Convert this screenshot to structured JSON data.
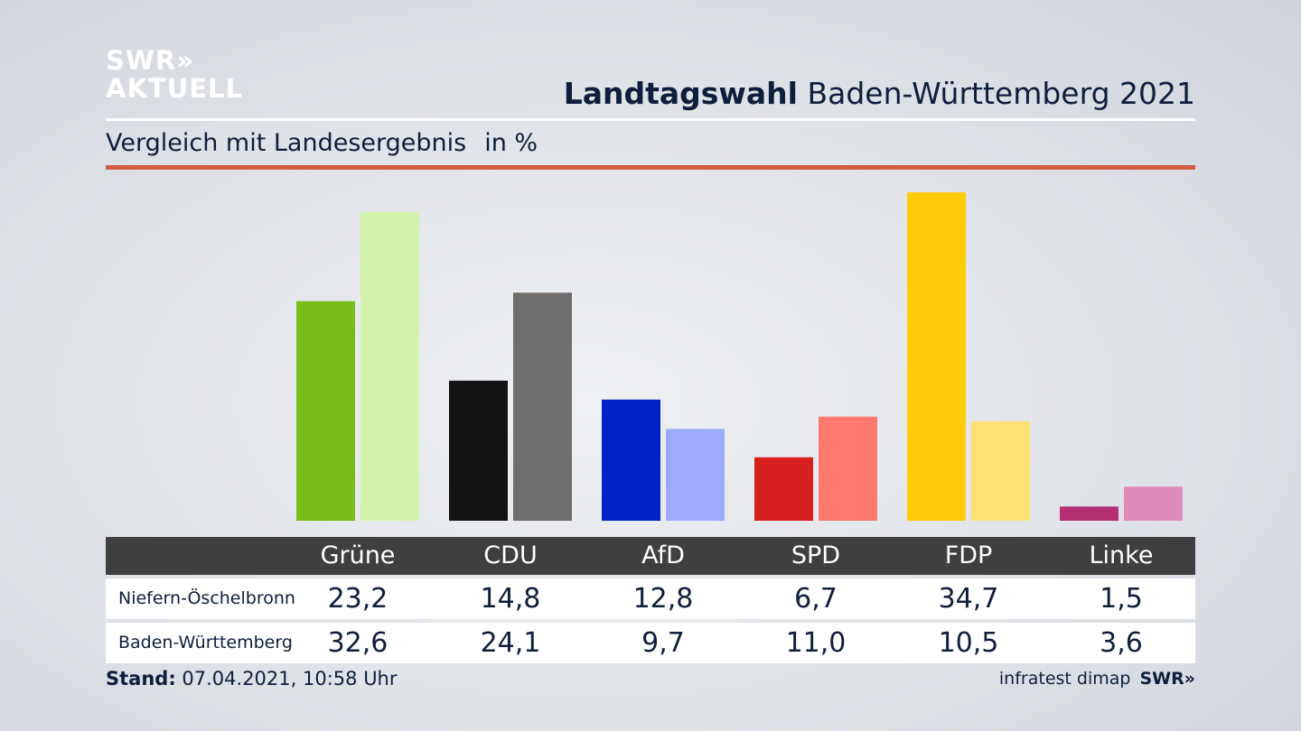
{
  "header": {
    "logo_line1": "SWR»",
    "logo_line2": "AKTUELL",
    "title_bold": "Landtagswahl",
    "title_rest": "Baden-Württemberg 2021",
    "subtitle": "Vergleich mit Landesergebnis",
    "unit": "in %"
  },
  "colors": {
    "accent_red": "#d35a44",
    "table_header": "#3f3f3f"
  },
  "chart_data": {
    "type": "bar",
    "title": "Vergleich mit Landesergebnis",
    "ylabel": "in %",
    "ylim": [
      0,
      35
    ],
    "categories": [
      "Grüne",
      "CDU",
      "AfD",
      "SPD",
      "FDP",
      "Linke"
    ],
    "series": [
      {
        "name": "Niefern-Öschelbronn",
        "values": [
          23.2,
          14.8,
          12.8,
          6.7,
          34.7,
          1.5
        ],
        "labels": [
          "23,2",
          "14,8",
          "12,8",
          "6,7",
          "34,7",
          "1,5"
        ],
        "colors": [
          "#79bd1c",
          "#121212",
          "#0022c7",
          "#d61f1f",
          "#ffcb0a",
          "#b32e73"
        ]
      },
      {
        "name": "Baden-Württemberg",
        "values": [
          32.6,
          24.1,
          9.7,
          11.0,
          10.5,
          3.6
        ],
        "labels": [
          "32,6",
          "24,1",
          "9,7",
          "11,0",
          "10,5",
          "3,6"
        ],
        "colors": [
          "#d4f4ad",
          "#706e6c",
          "#9dabff",
          "#ff7970",
          "#fde172",
          "#df8bba"
        ]
      }
    ]
  },
  "footer": {
    "stand_label": "Stand:",
    "stand_value": "07.04.2021, 10:58 Uhr",
    "source": "infratest dimap",
    "brand": "SWR»"
  }
}
